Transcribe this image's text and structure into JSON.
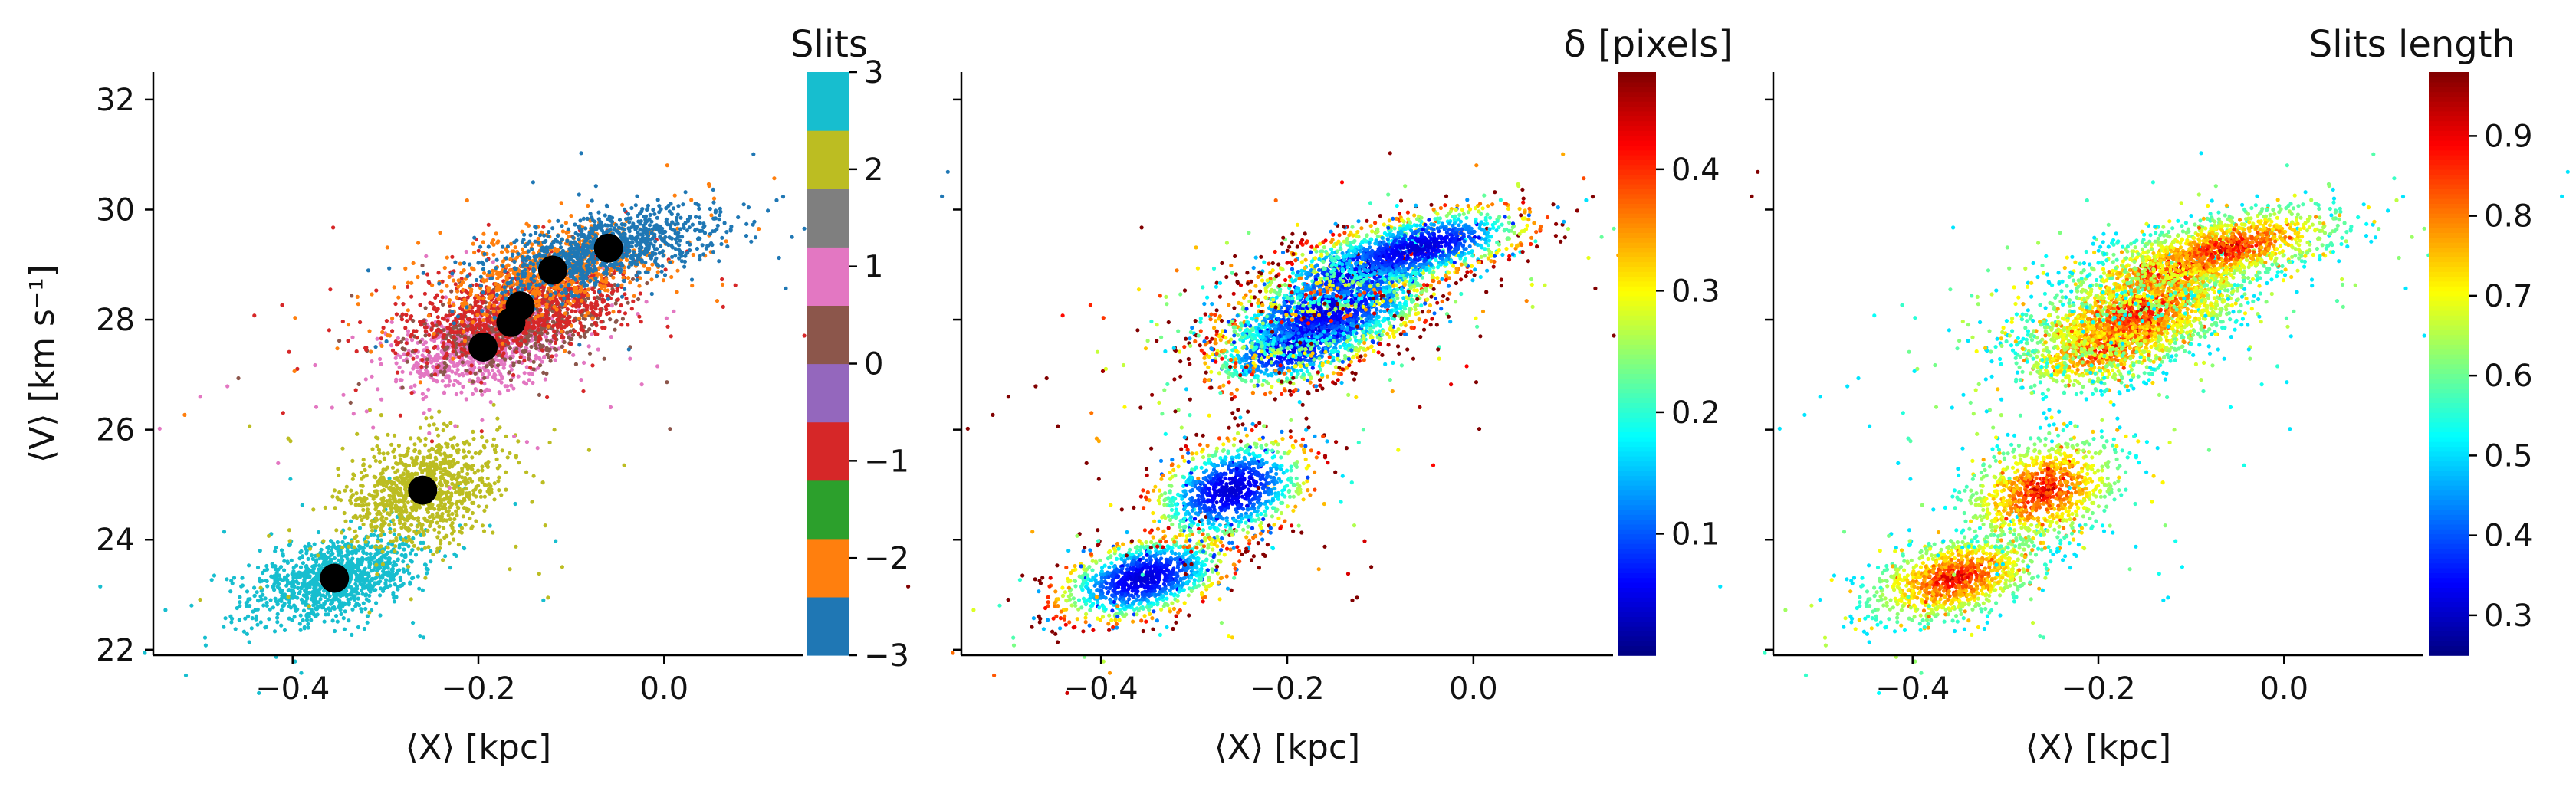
{
  "figure": {
    "panels": [
      "slits",
      "delta",
      "slits-length"
    ]
  },
  "chart_data": [
    {
      "type": "scatter",
      "id": "slits",
      "xlabel": "⟨X⟩ [kpc]",
      "ylabel": "⟨V⟩ [km s⁻¹]",
      "xlim": [
        -0.55,
        0.15
      ],
      "ylim": [
        21.9,
        32.5
      ],
      "xticks": [
        -0.4,
        -0.2,
        0.0
      ],
      "xtick_labels": [
        "−0.4",
        "−0.2",
        "0.0"
      ],
      "yticks": [
        22,
        24,
        26,
        28,
        30,
        32
      ],
      "ytick_labels": [
        "22",
        "24",
        "26",
        "28",
        "30",
        "32"
      ],
      "colorbar": {
        "title": "Slits",
        "type": "discrete",
        "range": [
          -3,
          3
        ],
        "ticks": [
          -3,
          -2,
          -1,
          0,
          1,
          2,
          3
        ],
        "tick_labels": [
          "−3",
          "−2",
          "−1",
          "0",
          "1",
          "2",
          "3"
        ],
        "colors": [
          "#1f77b4",
          "#ff7f0e",
          "#2ca02c",
          "#d62728",
          "#9467bd",
          "#8c564b",
          "#e377c2",
          "#7f7f7f",
          "#bcbd22",
          "#17becf"
        ]
      },
      "clusters": [
        {
          "x": -0.355,
          "y": 23.3,
          "sx": 0.045,
          "sy": 0.35,
          "n": 1100,
          "color_index": 9
        },
        {
          "x": -0.26,
          "y": 24.9,
          "sx": 0.042,
          "sy": 0.45,
          "n": 1000,
          "color_index": 8
        },
        {
          "x": -0.195,
          "y": 27.5,
          "sx": 0.045,
          "sy": 0.35,
          "n": 850,
          "color_index": 6
        },
        {
          "x": -0.16,
          "y": 27.9,
          "sx": 0.05,
          "sy": 0.35,
          "n": 650,
          "color_index": 5
        },
        {
          "x": -0.155,
          "y": 28.2,
          "sx": 0.06,
          "sy": 0.38,
          "n": 950,
          "color_index": 3
        },
        {
          "x": -0.12,
          "y": 28.9,
          "sx": 0.055,
          "sy": 0.35,
          "n": 800,
          "color_index": 1
        },
        {
          "x": -0.06,
          "y": 29.3,
          "sx": 0.06,
          "sy": 0.3,
          "n": 1000,
          "color_index": 0
        }
      ],
      "means": [
        {
          "x": -0.355,
          "y": 23.3
        },
        {
          "x": -0.26,
          "y": 24.9
        },
        {
          "x": -0.195,
          "y": 27.5
        },
        {
          "x": -0.165,
          "y": 27.95
        },
        {
          "x": -0.155,
          "y": 28.25
        },
        {
          "x": -0.12,
          "y": 28.9
        },
        {
          "x": -0.06,
          "y": 29.3
        }
      ]
    },
    {
      "type": "scatter",
      "id": "delta",
      "xlabel": "⟨X⟩ [kpc]",
      "xlim": [
        -0.55,
        0.15
      ],
      "ylim": [
        21.9,
        32.5
      ],
      "xticks": [
        -0.4,
        -0.2,
        0.0
      ],
      "xtick_labels": [
        "−0.4",
        "−0.2",
        "0.0"
      ],
      "yticks": [
        22,
        24,
        26,
        28,
        30,
        32
      ],
      "colorbar": {
        "title": "δ [pixels]",
        "type": "continuous",
        "colormap": "jet",
        "range": [
          0.0,
          0.48
        ],
        "ticks": [
          0.1,
          0.2,
          0.3,
          0.4
        ],
        "tick_labels": [
          "0.1",
          "0.2",
          "0.3",
          "0.4"
        ]
      }
    },
    {
      "type": "scatter",
      "id": "slits-length",
      "xlabel": "⟨X⟩ [kpc]",
      "xlim": [
        -0.55,
        0.15
      ],
      "ylim": [
        21.9,
        32.5
      ],
      "xticks": [
        -0.4,
        -0.2,
        0.0
      ],
      "xtick_labels": [
        "−0.4",
        "−0.2",
        "0.0"
      ],
      "yticks": [
        22,
        24,
        26,
        28,
        30,
        32
      ],
      "colorbar": {
        "title": "Slits length",
        "type": "continuous",
        "colormap": "jet",
        "range": [
          0.25,
          0.98
        ],
        "ticks": [
          0.3,
          0.4,
          0.5,
          0.6,
          0.7,
          0.8,
          0.9
        ],
        "tick_labels": [
          "0.3",
          "0.4",
          "0.5",
          "0.6",
          "0.7",
          "0.8",
          "0.9"
        ]
      }
    }
  ]
}
